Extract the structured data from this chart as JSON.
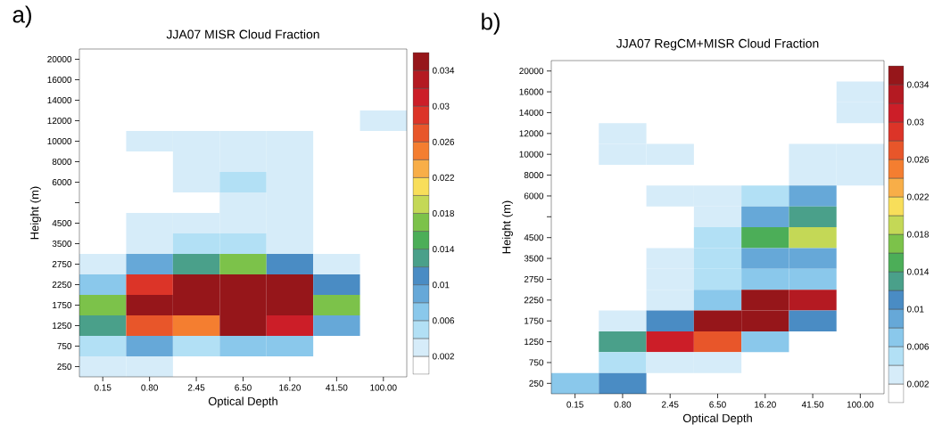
{
  "chart_data": [
    {
      "type": "heatmap",
      "title": "JJA07 MISR Cloud Fraction",
      "xlabel": "Optical Depth",
      "ylabel": "Height (m)",
      "annotations": [
        "a)"
      ],
      "categories": [
        "0.15",
        "0.80",
        "2.45",
        "6.50",
        "16.20",
        "41.50",
        "100.00"
      ],
      "y_categories": [
        "20000",
        "16000",
        "14000",
        "12000",
        "10000",
        "8000",
        "6000",
        null,
        "4500",
        "3500",
        "2750",
        "2250",
        "1750",
        "1250",
        "750",
        "250"
      ],
      "cells": [
        [
          null,
          null,
          null,
          null,
          null,
          null,
          null
        ],
        [
          null,
          null,
          null,
          null,
          null,
          null,
          null
        ],
        [
          null,
          null,
          null,
          null,
          null,
          null,
          null
        ],
        [
          null,
          null,
          null,
          null,
          null,
          null,
          0.003
        ],
        [
          null,
          0.003,
          0.003,
          0.003,
          0.003,
          null,
          null
        ],
        [
          null,
          null,
          0.003,
          0.003,
          0.003,
          null,
          null
        ],
        [
          null,
          null,
          0.003,
          0.005,
          0.003,
          null,
          null
        ],
        [
          null,
          null,
          null,
          0.003,
          0.003,
          null,
          null
        ],
        [
          null,
          0.003,
          0.003,
          0.003,
          0.003,
          null,
          null
        ],
        [
          null,
          0.003,
          0.005,
          0.005,
          0.003,
          null,
          null
        ],
        [
          0.003,
          0.009,
          0.013,
          0.017,
          0.011,
          0.003,
          null
        ],
        [
          0.007,
          0.029,
          0.035,
          0.035,
          0.035,
          0.011,
          null
        ],
        [
          0.017,
          0.035,
          0.035,
          0.035,
          0.035,
          0.017,
          null
        ],
        [
          0.013,
          0.027,
          0.025,
          0.035,
          0.031,
          0.009,
          null
        ],
        [
          0.005,
          0.009,
          0.005,
          0.007,
          0.007,
          null,
          null
        ],
        [
          0.003,
          0.003,
          null,
          null,
          null,
          null,
          null
        ]
      ],
      "clim": [
        0,
        0.036
      ],
      "cticks": [
        0.002,
        0.006,
        0.01,
        0.014,
        0.018,
        0.022,
        0.026,
        0.03,
        0.034
      ]
    },
    {
      "type": "heatmap",
      "title": "JJA07 RegCM+MISR Cloud Fraction",
      "xlabel": "Optical Depth",
      "ylabel": "Height (m)",
      "annotations": [
        "b)"
      ],
      "categories": [
        "0.15",
        "0.80",
        "2.45",
        "6.50",
        "16.20",
        "41.50",
        "100.00"
      ],
      "y_categories": [
        "20000",
        "16000",
        "14000",
        "12000",
        "10000",
        "8000",
        "6000",
        null,
        "4500",
        "3500",
        "2750",
        "2250",
        "1750",
        "1250",
        "750",
        "250"
      ],
      "cells": [
        [
          null,
          null,
          null,
          null,
          null,
          null,
          null
        ],
        [
          null,
          null,
          null,
          null,
          null,
          null,
          0.003
        ],
        [
          null,
          null,
          null,
          null,
          null,
          null,
          0.003
        ],
        [
          null,
          0.003,
          null,
          null,
          null,
          null,
          null
        ],
        [
          null,
          0.003,
          0.003,
          null,
          null,
          0.003,
          0.003
        ],
        [
          null,
          null,
          null,
          null,
          null,
          0.003,
          0.003
        ],
        [
          null,
          null,
          0.003,
          0.003,
          0.005,
          0.009,
          null
        ],
        [
          null,
          null,
          null,
          0.003,
          0.009,
          0.013,
          null
        ],
        [
          null,
          null,
          null,
          0.005,
          0.015,
          0.019,
          null
        ],
        [
          null,
          null,
          0.003,
          0.005,
          0.009,
          0.009,
          null
        ],
        [
          null,
          null,
          0.003,
          0.005,
          0.007,
          0.007,
          null
        ],
        [
          null,
          null,
          0.003,
          0.007,
          0.035,
          0.033,
          null
        ],
        [
          null,
          0.003,
          0.011,
          0.035,
          0.035,
          0.011,
          null
        ],
        [
          null,
          0.013,
          0.031,
          0.027,
          0.007,
          null,
          null
        ],
        [
          null,
          0.005,
          0.003,
          0.003,
          null,
          null,
          null
        ],
        [
          0.007,
          0.011,
          null,
          null,
          null,
          null,
          null
        ]
      ],
      "clim": [
        0,
        0.036
      ],
      "cticks": [
        0.002,
        0.006,
        0.01,
        0.014,
        0.018,
        0.022,
        0.026,
        0.03,
        0.034
      ]
    }
  ]
}
